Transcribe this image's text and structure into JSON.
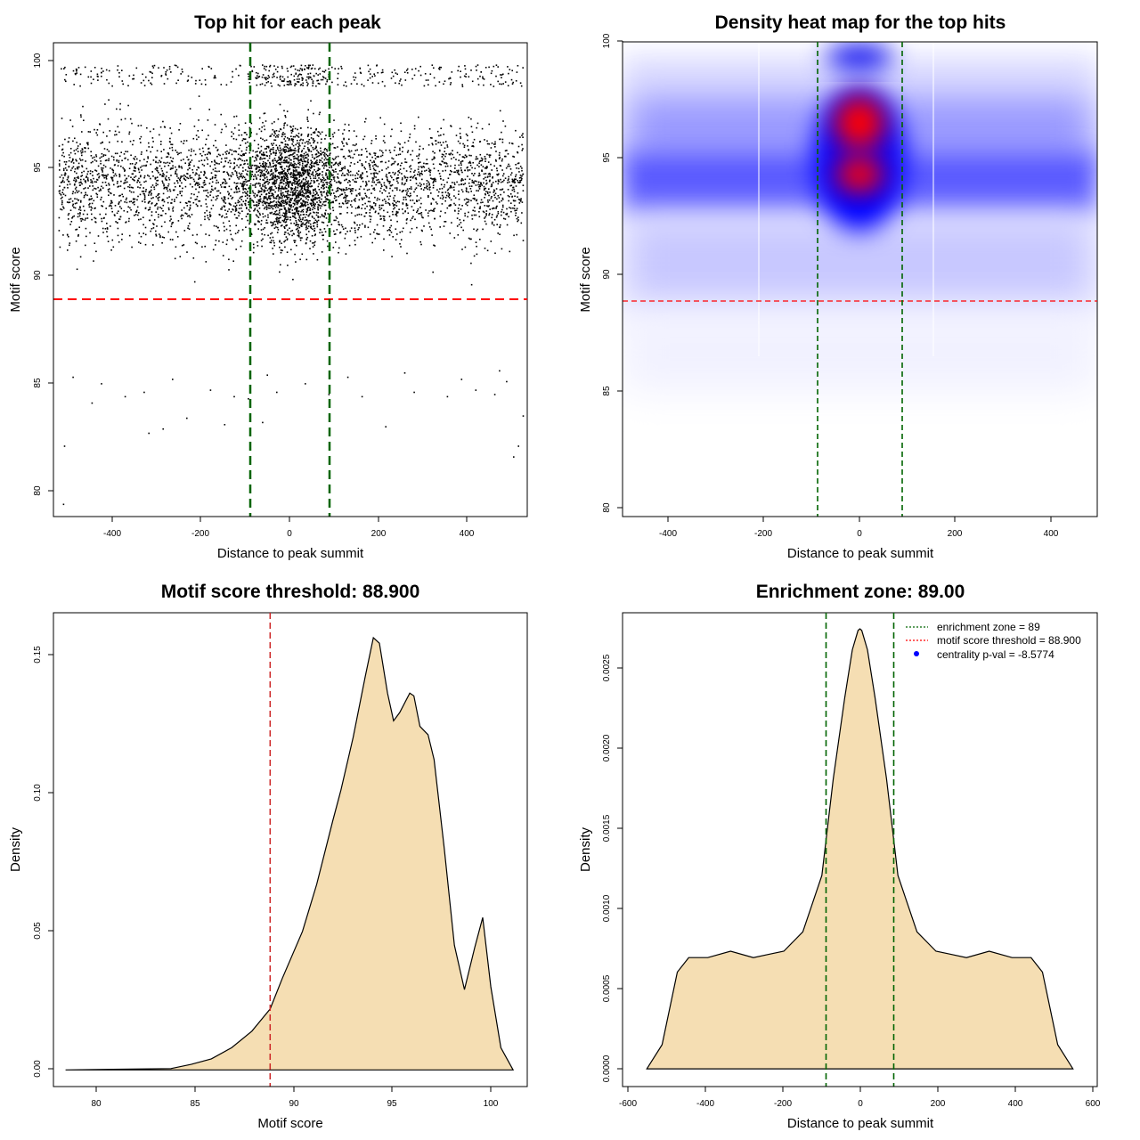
{
  "chart_data": [
    {
      "type": "scatter",
      "title": "Top hit for each peak",
      "xlabel": "Distance to peak summit",
      "ylabel": "Motif score",
      "xlim": [
        -500,
        500
      ],
      "ylim": [
        79,
        101
      ],
      "xticks": [
        "-400",
        "-200",
        "0",
        "200",
        "400"
      ],
      "yticks": [
        "80",
        "85",
        "90",
        "95",
        "100"
      ],
      "score_threshold": 88.9,
      "enrichment_zone": [
        -89,
        89
      ],
      "colors": {
        "points": "#000000",
        "threshold": "#ff0000",
        "zone": "#006400"
      },
      "points": [
        [
          -480,
          79.6
        ],
        [
          -478,
          82.3
        ],
        [
          -220,
          83.6
        ],
        [
          -270,
          83.1
        ],
        [
          -300,
          82.9
        ],
        [
          -140,
          83.3
        ],
        [
          -90,
          84.5
        ],
        [
          -60,
          83.4
        ],
        [
          200,
          83.2
        ],
        [
          480,
          82.3
        ],
        [
          490,
          83.7
        ],
        [
          470,
          81.8
        ],
        [
          -420,
          84.3
        ],
        [
          430,
          84.7
        ],
        [
          -350,
          84.6
        ],
        [
          -310,
          84.8
        ],
        [
          -170,
          84.9
        ],
        [
          -120,
          84.6
        ],
        [
          -30,
          84.8
        ],
        [
          80,
          84.7
        ],
        [
          150,
          84.6
        ],
        [
          260,
          84.8
        ],
        [
          330,
          84.6
        ],
        [
          390,
          84.9
        ],
        [
          455,
          85.3
        ],
        [
          -460,
          85.5
        ],
        [
          -400,
          85.2
        ],
        [
          -250,
          85.4
        ],
        [
          -50,
          85.6
        ],
        [
          30,
          85.2
        ],
        [
          120,
          85.5
        ],
        [
          240,
          85.7
        ],
        [
          360,
          85.4
        ],
        [
          440,
          85.8
        ]
      ]
    },
    {
      "type": "heatmap",
      "title": "Density heat map for the top hits",
      "xlabel": "Distance to peak summit",
      "ylabel": "Motif score",
      "xlim": [
        -500,
        500
      ],
      "ylim": [
        79,
        101
      ],
      "xticks": [
        "-400",
        "-200",
        "0",
        "200",
        "400"
      ],
      "yticks": [
        "80",
        "85",
        "90",
        "95",
        "100"
      ],
      "score_threshold": 88.9,
      "enrichment_zone": [
        -89,
        89
      ],
      "colors": {
        "low": "#ffffff",
        "mid": "#0000ff",
        "high": "#ff0000",
        "threshold": "#ff0000",
        "zone": "#006400"
      },
      "hotspots": [
        {
          "x": 0,
          "y": 96.3,
          "level": "high"
        },
        {
          "x": 0,
          "y": 94.2,
          "level": "high"
        },
        {
          "x": 0,
          "y": 99.4,
          "level": "mid"
        },
        {
          "x": -300,
          "y": 94.0,
          "level": "mid"
        },
        {
          "x": 300,
          "y": 94.0,
          "level": "mid"
        }
      ]
    },
    {
      "type": "area",
      "title": "Motif score threshold: 88.900",
      "xlabel": "Motif score",
      "ylabel": "Density",
      "xlim": [
        78.2,
        101.6
      ],
      "ylim": [
        -0.006,
        0.165
      ],
      "xticks": [
        "80",
        "85",
        "90",
        "95",
        "100"
      ],
      "yticks": [
        "0.00",
        "0.05",
        "0.10",
        "0.15"
      ],
      "score_threshold": 88.9,
      "colors": {
        "fill": "#f5deb3",
        "line": "#000000",
        "threshold": "#cd2626"
      },
      "x": [
        78.8,
        84.0,
        85.0,
        86.0,
        87.0,
        88.0,
        88.9,
        89.5,
        90.5,
        91.2,
        92.0,
        92.4,
        93.0,
        93.6,
        94.0,
        94.3,
        94.7,
        95.0,
        95.3,
        95.8,
        96.0,
        96.3,
        96.7,
        97.0,
        97.5,
        98.0,
        98.5,
        99.0,
        99.4,
        99.8,
        100.3,
        100.9
      ],
      "y": [
        0.0,
        0.0005,
        0.002,
        0.004,
        0.008,
        0.014,
        0.022,
        0.033,
        0.05,
        0.067,
        0.09,
        0.101,
        0.12,
        0.142,
        0.156,
        0.154,
        0.136,
        0.126,
        0.129,
        0.136,
        0.135,
        0.124,
        0.121,
        0.112,
        0.08,
        0.045,
        0.029,
        0.044,
        0.055,
        0.03,
        0.008,
        0.0
      ]
    },
    {
      "type": "area",
      "title": "Enrichment zone: 89.00",
      "xlabel": "Distance to peak summit",
      "ylabel": "Density",
      "xlim": [
        -624,
        624
      ],
      "ylim": [
        -0.00011,
        0.00283
      ],
      "xticks": [
        "-600",
        "-400",
        "-200",
        "0",
        "200",
        "400",
        "600"
      ],
      "yticks": [
        "0.0000",
        "0.0005",
        "0.0010",
        "0.0015",
        "0.0020",
        "0.0025"
      ],
      "enrichment_zone": [
        -89,
        89
      ],
      "colors": {
        "fill": "#f5deb3",
        "line": "#000000",
        "zone": "#006400",
        "threshold": "#ff0000",
        "pval": "#0000ff"
      },
      "legend": {
        "position": "top-right",
        "entries": [
          "enrichment zone = 89",
          "motif score threshold = 88.900",
          "centrality p-val = -8.5774"
        ]
      },
      "x": [
        -560,
        -520,
        -480,
        -450,
        -400,
        -340,
        -280,
        -240,
        -200,
        -150,
        -100,
        -70,
        -40,
        -20,
        -5,
        0,
        5,
        20,
        40,
        70,
        100,
        150,
        200,
        240,
        280,
        340,
        400,
        450,
        480,
        520,
        560
      ],
      "y": [
        0.0,
        0.00015,
        0.0006,
        0.00069,
        0.00069,
        0.00073,
        0.00069,
        0.00071,
        0.00073,
        0.00085,
        0.0012,
        0.0018,
        0.0023,
        0.0026,
        0.00272,
        0.00273,
        0.00272,
        0.0026,
        0.0023,
        0.0018,
        0.0012,
        0.00085,
        0.00073,
        0.00071,
        0.00069,
        0.00073,
        0.00069,
        0.00069,
        0.0006,
        0.00015,
        0.0
      ]
    }
  ]
}
